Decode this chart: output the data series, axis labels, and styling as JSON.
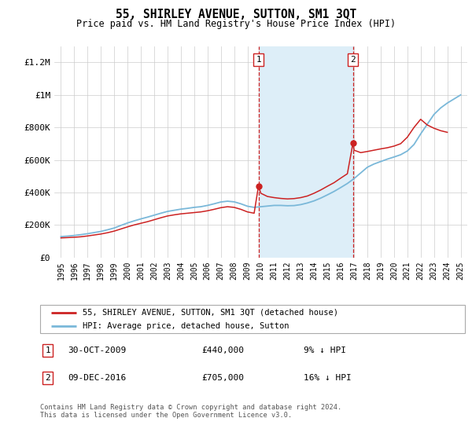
{
  "title": "55, SHIRLEY AVENUE, SUTTON, SM1 3QT",
  "subtitle": "Price paid vs. HM Land Registry's House Price Index (HPI)",
  "legend_label_red": "55, SHIRLEY AVENUE, SUTTON, SM1 3QT (detached house)",
  "legend_label_blue": "HPI: Average price, detached house, Sutton",
  "footnote": "Contains HM Land Registry data © Crown copyright and database right 2024.\nThis data is licensed under the Open Government Licence v3.0.",
  "marker1_date": "30-OCT-2009",
  "marker1_price": 440000,
  "marker1_hpi": "9% ↓ HPI",
  "marker2_date": "09-DEC-2016",
  "marker2_price": 705000,
  "marker2_hpi": "16% ↓ HPI",
  "marker1_x": 2009.83,
  "marker2_x": 2016.92,
  "ylim": [
    0,
    1300000
  ],
  "xlim": [
    1994.5,
    2025.5
  ],
  "hpi_color": "#7ab8d9",
  "price_color": "#cc2222",
  "shade_color": "#ddeef8",
  "marker_box_color": "#cc2222",
  "grid_color": "#cccccc",
  "yticks": [
    0,
    200000,
    400000,
    600000,
    800000,
    1000000,
    1200000
  ],
  "ytick_labels": [
    "£0",
    "£200K",
    "£400K",
    "£600K",
    "£800K",
    "£1M",
    "£1.2M"
  ],
  "xticks": [
    1995,
    1996,
    1997,
    1998,
    1999,
    2000,
    2001,
    2002,
    2003,
    2004,
    2005,
    2006,
    2007,
    2008,
    2009,
    2010,
    2011,
    2012,
    2013,
    2014,
    2015,
    2016,
    2017,
    2018,
    2019,
    2020,
    2021,
    2022,
    2023,
    2024,
    2025
  ],
  "hpi_years": [
    1995.0,
    1995.5,
    1996.0,
    1996.5,
    1997.0,
    1997.5,
    1998.0,
    1998.5,
    1999.0,
    1999.5,
    2000.0,
    2000.5,
    2001.0,
    2001.5,
    2002.0,
    2002.5,
    2003.0,
    2003.5,
    2004.0,
    2004.5,
    2005.0,
    2005.5,
    2006.0,
    2006.5,
    2007.0,
    2007.5,
    2008.0,
    2008.5,
    2009.0,
    2009.5,
    2010.0,
    2010.5,
    2011.0,
    2011.5,
    2012.0,
    2012.5,
    2013.0,
    2013.5,
    2014.0,
    2014.5,
    2015.0,
    2015.5,
    2016.0,
    2016.5,
    2017.0,
    2017.5,
    2018.0,
    2018.5,
    2019.0,
    2019.5,
    2020.0,
    2020.5,
    2021.0,
    2021.5,
    2022.0,
    2022.5,
    2023.0,
    2023.5,
    2024.0,
    2024.5,
    2025.0
  ],
  "hpi_values": [
    128000,
    131000,
    135000,
    140000,
    146000,
    153000,
    160000,
    170000,
    181000,
    197000,
    212000,
    225000,
    237000,
    248000,
    260000,
    272000,
    283000,
    290000,
    297000,
    302000,
    308000,
    312000,
    320000,
    330000,
    341000,
    346000,
    342000,
    330000,
    315000,
    308000,
    312000,
    316000,
    320000,
    320000,
    318000,
    319000,
    325000,
    335000,
    348000,
    365000,
    385000,
    406000,
    430000,
    455000,
    485000,
    520000,
    555000,
    575000,
    590000,
    605000,
    618000,
    632000,
    655000,
    695000,
    760000,
    820000,
    880000,
    920000,
    950000,
    975000,
    1000000
  ],
  "red_years": [
    1995.0,
    1995.5,
    1996.0,
    1996.5,
    1997.0,
    1997.5,
    1998.0,
    1998.5,
    1999.0,
    1999.5,
    2000.0,
    2000.5,
    2001.0,
    2001.5,
    2002.0,
    2002.5,
    2003.0,
    2003.5,
    2004.0,
    2004.5,
    2005.0,
    2005.5,
    2006.0,
    2006.5,
    2007.0,
    2007.5,
    2008.0,
    2008.5,
    2009.0,
    2009.5,
    2009.83,
    2010.0,
    2010.5,
    2011.0,
    2011.5,
    2012.0,
    2012.5,
    2013.0,
    2013.5,
    2014.0,
    2014.5,
    2015.0,
    2015.5,
    2016.0,
    2016.5,
    2016.92,
    2017.0,
    2017.5,
    2018.0,
    2018.5,
    2019.0,
    2019.5,
    2020.0,
    2020.5,
    2021.0,
    2021.5,
    2022.0,
    2022.5,
    2023.0,
    2023.5,
    2024.0
  ],
  "red_values": [
    120000,
    122000,
    124000,
    127000,
    132000,
    138000,
    144000,
    152000,
    162000,
    175000,
    188000,
    200000,
    210000,
    220000,
    232000,
    244000,
    255000,
    262000,
    268000,
    272000,
    276000,
    280000,
    287000,
    296000,
    306000,
    312000,
    308000,
    296000,
    280000,
    272000,
    440000,
    395000,
    375000,
    368000,
    363000,
    360000,
    362000,
    368000,
    378000,
    395000,
    415000,
    438000,
    460000,
    488000,
    515000,
    705000,
    660000,
    645000,
    652000,
    660000,
    668000,
    675000,
    685000,
    700000,
    740000,
    800000,
    850000,
    815000,
    795000,
    780000,
    770000
  ]
}
